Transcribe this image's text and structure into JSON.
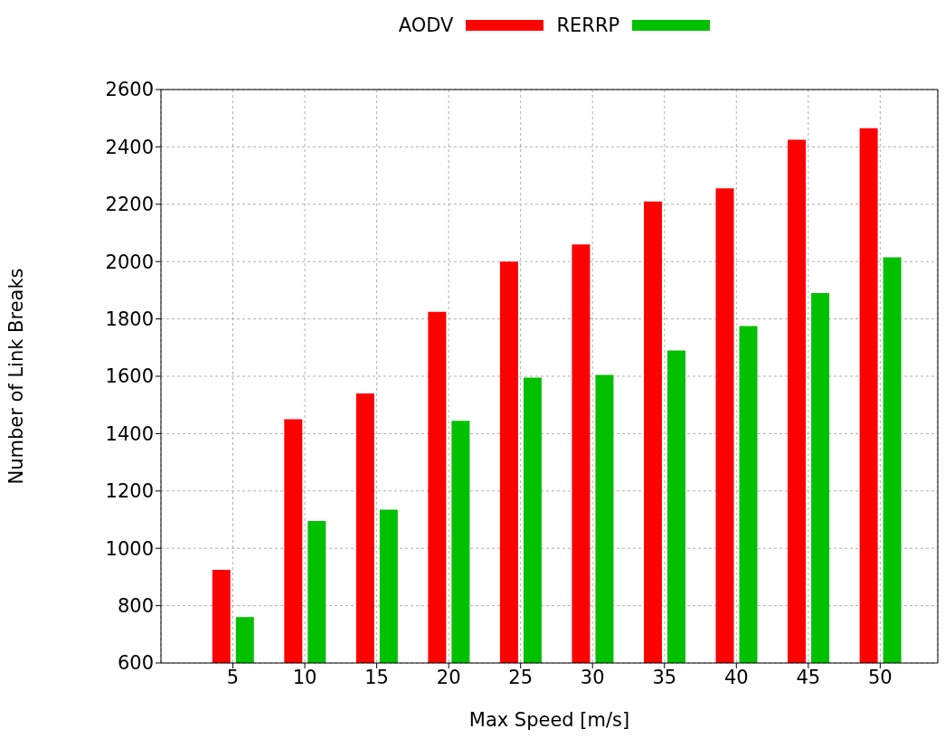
{
  "chart_data": {
    "type": "bar",
    "xlabel": "Max Speed [m/s]",
    "ylabel": "Number of Link Breaks",
    "x": [
      5,
      10,
      15,
      20,
      25,
      30,
      35,
      40,
      45,
      50
    ],
    "series": [
      {
        "name": "AODV",
        "color": "#ff0000",
        "values": [
          925,
          1450,
          1540,
          1825,
          2000,
          2060,
          2210,
          2255,
          2425,
          2465
        ]
      },
      {
        "name": "RERRP",
        "color": "#00c000",
        "values": [
          760,
          1095,
          1135,
          1445,
          1595,
          1605,
          1690,
          1775,
          1890,
          2015
        ]
      }
    ],
    "xlim": [
      0,
      54
    ],
    "xticks": [
      5,
      10,
      15,
      20,
      25,
      30,
      35,
      40,
      45,
      50
    ],
    "ylim": [
      600,
      2600
    ],
    "yticks": [
      600,
      800,
      1000,
      1200,
      1400,
      1600,
      1800,
      2000,
      2200,
      2400,
      2600
    ],
    "grid": true,
    "legend": "top"
  }
}
